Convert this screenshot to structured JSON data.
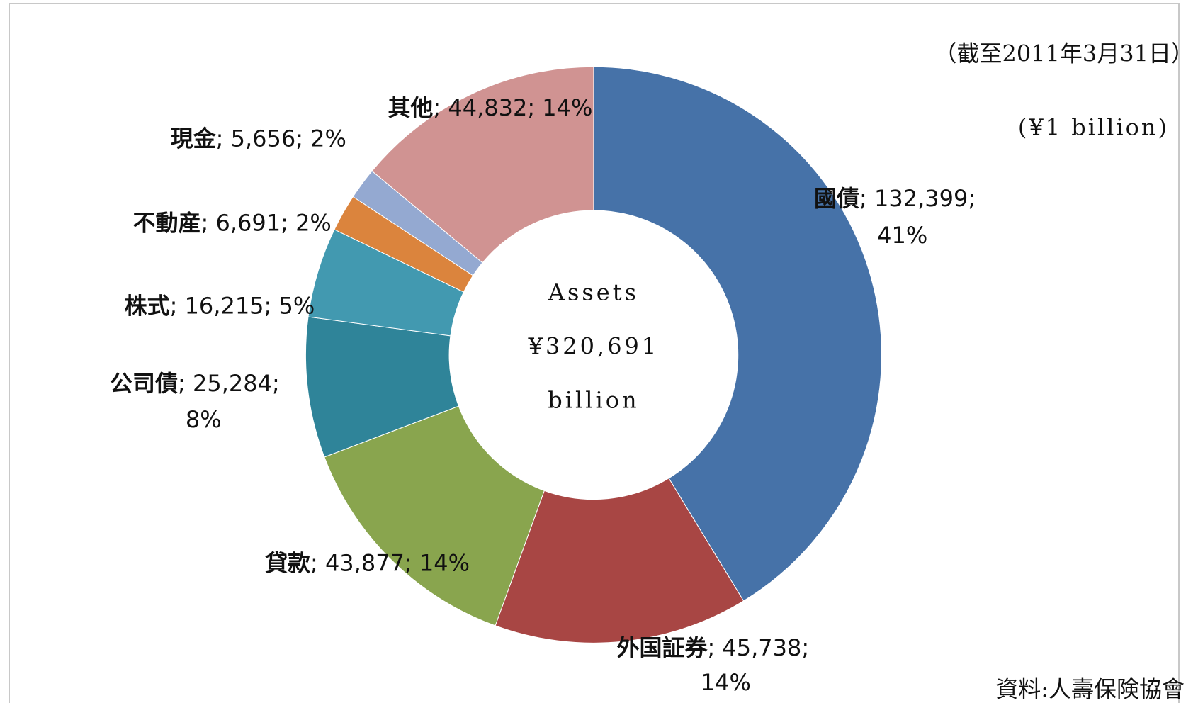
{
  "chart_data": {
    "type": "donut",
    "categories": [
      "國債",
      "外国証券",
      "貸款",
      "公司債",
      "株式",
      "不動産",
      "現金",
      "其他"
    ],
    "values": [
      132399,
      45738,
      43877,
      25284,
      16215,
      6691,
      5656,
      44832
    ],
    "value_labels": [
      "132,399",
      "45,738",
      "43,877",
      "25,284",
      "16,215",
      "6,691",
      "5,656",
      "44,832"
    ],
    "percent_labels": [
      "41%",
      "14%",
      "14%",
      "8%",
      "5%",
      "2%",
      "2%",
      "14%"
    ],
    "label_separator": "; ",
    "colors": [
      "#4672a8",
      "#a84644",
      "#89a54e",
      "#2f8499",
      "#4299b0",
      "#db843d",
      "#94a9d1",
      "#d09392"
    ],
    "center_text": [
      "Assets",
      "¥320,691",
      "billion"
    ],
    "annotations": [
      "（截至2011年3月31日）",
      "(¥1 billion)",
      "資料:人壽保険協會"
    ]
  }
}
